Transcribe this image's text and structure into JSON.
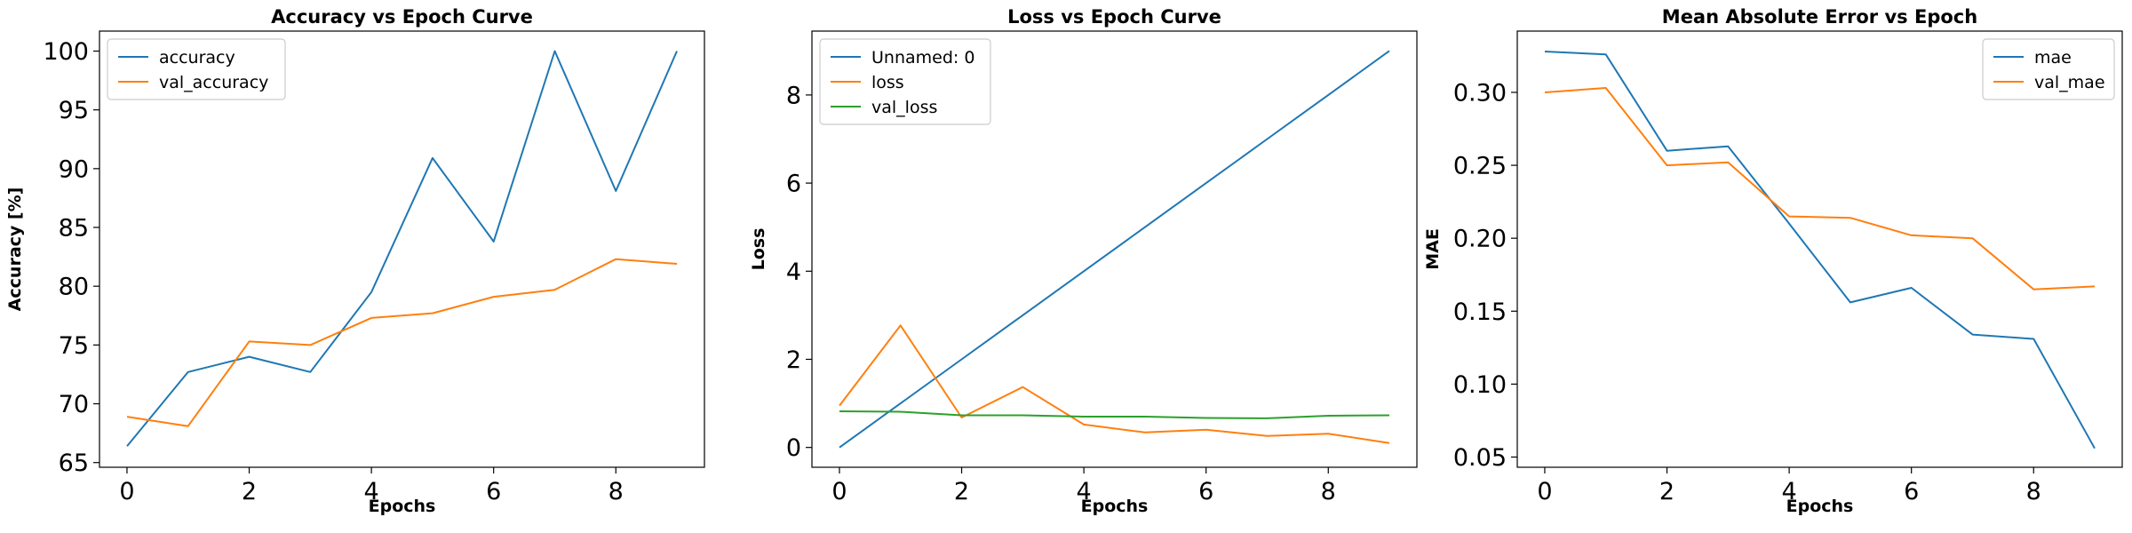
{
  "chart_data": [
    {
      "type": "line",
      "title": "Accuracy vs Epoch Curve",
      "xlabel": "Epochs",
      "ylabel": "Accuracy [%]",
      "xlim": [
        -0.45,
        9.45
      ],
      "ylim": [
        64.6,
        101.7
      ],
      "xticks": [
        0,
        2,
        4,
        6,
        8
      ],
      "yticks": [
        65,
        70,
        75,
        80,
        85,
        90,
        95,
        100
      ],
      "grid": false,
      "legend_position": "top-left",
      "x": [
        0,
        1,
        2,
        3,
        4,
        5,
        6,
        7,
        8,
        9
      ],
      "series": [
        {
          "name": "accuracy",
          "color": "#1f77b4",
          "values": [
            66.4,
            72.7,
            74.0,
            72.7,
            79.5,
            90.9,
            83.8,
            100.0,
            88.1,
            100.0
          ]
        },
        {
          "name": "val_accuracy",
          "color": "#ff7f0e",
          "values": [
            68.9,
            68.1,
            75.3,
            75.0,
            77.3,
            77.7,
            79.1,
            79.7,
            82.3,
            81.9
          ]
        }
      ]
    },
    {
      "type": "line",
      "title": "Loss vs Epoch Curve",
      "xlabel": "Epochs",
      "ylabel": "Loss",
      "xlim": [
        -0.45,
        9.45
      ],
      "ylim": [
        -0.45,
        9.45
      ],
      "xticks": [
        0,
        2,
        4,
        6,
        8
      ],
      "yticks": [
        0,
        2,
        4,
        6,
        8
      ],
      "grid": false,
      "legend_position": "top-left",
      "x": [
        0,
        1,
        2,
        3,
        4,
        5,
        6,
        7,
        8,
        9
      ],
      "series": [
        {
          "name": "Unnamed: 0",
          "color": "#1f77b4",
          "values": [
            0,
            1,
            2,
            3,
            4,
            5,
            6,
            7,
            8,
            9
          ]
        },
        {
          "name": "loss",
          "color": "#ff7f0e",
          "values": [
            0.95,
            2.77,
            0.68,
            1.37,
            0.52,
            0.34,
            0.4,
            0.26,
            0.31,
            0.1
          ]
        },
        {
          "name": "val_loss",
          "color": "#2ca02c",
          "values": [
            0.82,
            0.81,
            0.73,
            0.73,
            0.7,
            0.7,
            0.67,
            0.66,
            0.72,
            0.73
          ]
        }
      ]
    },
    {
      "type": "line",
      "title": "Mean Absolute Error vs Epoch",
      "xlabel": "Epochs",
      "ylabel": "MAE",
      "xlim": [
        -0.45,
        9.45
      ],
      "ylim": [
        0.043,
        0.342
      ],
      "xticks": [
        0,
        2,
        4,
        6,
        8
      ],
      "yticks": [
        0.05,
        0.1,
        0.15,
        0.2,
        0.25,
        0.3
      ],
      "ytick_labels": [
        "0.05",
        "0.10",
        "0.15",
        "0.20",
        "0.25",
        "0.30"
      ],
      "grid": false,
      "legend_position": "top-right",
      "x": [
        0,
        1,
        2,
        3,
        4,
        5,
        6,
        7,
        8,
        9
      ],
      "series": [
        {
          "name": "mae",
          "color": "#1f77b4",
          "values": [
            0.328,
            0.326,
            0.26,
            0.263,
            0.21,
            0.156,
            0.166,
            0.134,
            0.131,
            0.056
          ]
        },
        {
          "name": "val_mae",
          "color": "#ff7f0e",
          "values": [
            0.3,
            0.303,
            0.25,
            0.252,
            0.215,
            0.214,
            0.202,
            0.2,
            0.165,
            0.167
          ]
        }
      ]
    }
  ]
}
